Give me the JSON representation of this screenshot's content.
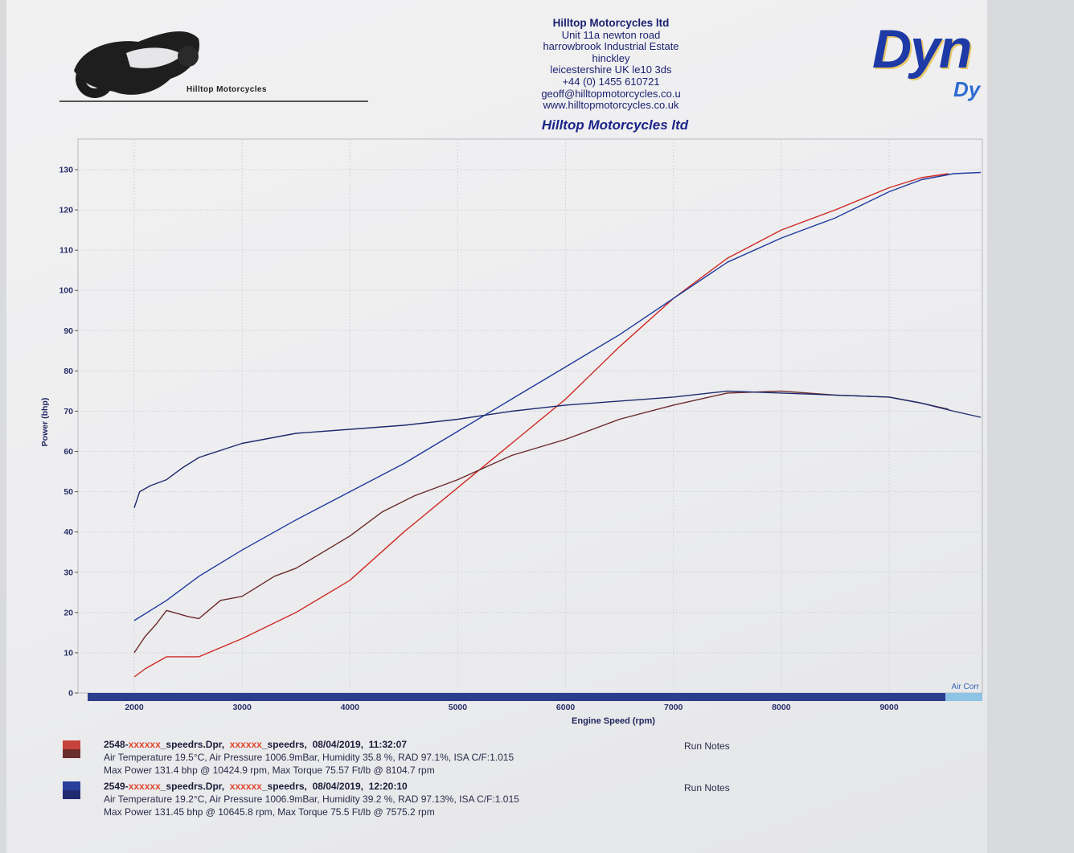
{
  "header": {
    "company": "Hilltop Motorcycles ltd",
    "address_lines": [
      "Unit 11a newton road",
      "harrowbrook  Industrial Estate",
      "hinckley",
      "leicestershire UK le10 3ds",
      "+44 (0) 1455 610721",
      "geoff@hilltopmotorcycles.co.u",
      "www.hilltopmotorcycles.co.uk"
    ],
    "report_title": "Hilltop Motorcycles ltd",
    "logo_caption": "Hilltop Motorcycles",
    "brand_text": "Dyn",
    "brand_sub": "Dy"
  },
  "colors": {
    "run_2548_power": "#cf2a24",
    "run_2548_torque": "#6b2a2a",
    "run_2549_power": "#1f3a9e",
    "run_2549_torque": "#1e2a6e",
    "axis_band": "#2b3d8e",
    "air_corr": "#8ec3e6"
  },
  "chart_data": {
    "type": "line",
    "xlabel": "Engine Speed (rpm)",
    "ylabel": "Power (bhp)",
    "xlim": [
      1500,
      9850
    ],
    "ylim": [
      0,
      138
    ],
    "x_ticks": [
      2000,
      3000,
      4000,
      5000,
      6000,
      7000,
      8000,
      9000
    ],
    "y_ticks": [
      0,
      10,
      20,
      30,
      40,
      50,
      60,
      70,
      80,
      90,
      100,
      110,
      120,
      130
    ],
    "grid": true,
    "air_corr_label": "Air Corr",
    "series": [
      {
        "run": "2548",
        "kind": "power",
        "x": [
          2000,
          2100,
          2300,
          2600,
          3000,
          3500,
          4000,
          4500,
          5000,
          5500,
          6000,
          6500,
          7000,
          7500,
          8000,
          8500,
          9000,
          9300,
          9550
        ],
        "y": [
          4,
          6,
          9,
          9,
          13.5,
          20,
          28,
          40,
          51,
          62,
          73,
          86,
          98,
          108,
          115,
          120,
          125.5,
          128,
          129
        ]
      },
      {
        "run": "2548",
        "kind": "torque",
        "x": [
          2000,
          2100,
          2200,
          2300,
          2500,
          2600,
          2800,
          3000,
          3300,
          3500,
          4000,
          4300,
          4600,
          5000,
          5500,
          6000,
          6500,
          7000,
          7500,
          8000,
          8500,
          9000,
          9300,
          9550
        ],
        "y": [
          10,
          14,
          17,
          20.5,
          19,
          18.5,
          23,
          24,
          29,
          31,
          39,
          45,
          49,
          53,
          59,
          63,
          68,
          71.5,
          74.5,
          75,
          74,
          73.5,
          72,
          70.5
        ]
      },
      {
        "run": "2549",
        "kind": "power",
        "x": [
          2000,
          2300,
          2600,
          3000,
          3500,
          4000,
          4500,
          5000,
          5500,
          6000,
          6500,
          7000,
          7500,
          8000,
          8500,
          9000,
          9300,
          9600,
          9850
        ],
        "y": [
          18,
          23,
          29,
          35.5,
          43,
          50,
          57,
          65,
          73,
          81,
          89,
          98,
          107,
          113,
          118,
          124.5,
          127.5,
          129,
          129.3
        ]
      },
      {
        "run": "2549",
        "kind": "torque",
        "x": [
          2000,
          2050,
          2150,
          2300,
          2450,
          2600,
          3000,
          3500,
          4000,
          4500,
          5000,
          5500,
          6000,
          6500,
          7000,
          7500,
          8000,
          8500,
          9000,
          9300,
          9600,
          9850
        ],
        "y": [
          46,
          50,
          51.5,
          53,
          56,
          58.5,
          62,
          64.5,
          65.5,
          66.5,
          68,
          70,
          71.5,
          72.5,
          73.5,
          75,
          74.5,
          74,
          73.5,
          72,
          70,
          68.5
        ]
      }
    ]
  },
  "legend": {
    "runs": [
      {
        "file_prefix": "2548-",
        "file_redacted": "xxxxxx",
        "file_suffix": "_speedrs.Dpr,",
        "name_redacted": "xxxxxx",
        "name_suffix": "_speedrs,",
        "date": "08/04/2019,",
        "time": "11:32:07",
        "conditions": "Air Temperature 19.5°C, Air Pressure 1006.9mBar, Humidity 35.8 %, RAD 97.1%,   ISA  C/F:1.015",
        "max": "Max Power 131.4 bhp @ 10424.9 rpm, Max Torque 75.57 Ft/lb @ 8104.7 rpm",
        "notes": "Run Notes"
      },
      {
        "file_prefix": "2549-",
        "file_redacted": "xxxxxx",
        "file_suffix": "_speedrs.Dpr,",
        "name_redacted": "xxxxxx",
        "name_suffix": "_speedrs,",
        "date": "08/04/2019,",
        "time": "12:20:10",
        "conditions": "Air Temperature 19.2°C, Air Pressure 1006.9mBar, Humidity 39.2 %, RAD 97.13%,   ISA  C/F:1.015",
        "max": "Max Power 131.45 bhp @ 10645.8 rpm, Max Torque 75.5 Ft/lb @ 7575.2 rpm",
        "notes": "Run Notes"
      }
    ]
  }
}
